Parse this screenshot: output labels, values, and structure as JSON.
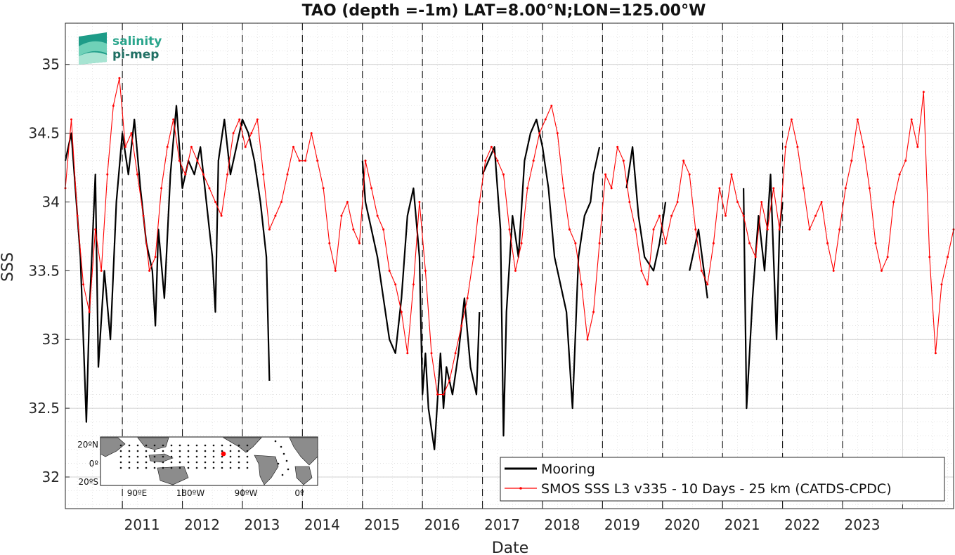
{
  "chart_data": {
    "type": "line",
    "title": "TAO (depth =-1m) LAT=8.00°N;LON=125.00°W",
    "xlabel": "Date",
    "ylabel": "SSS",
    "xlim": [
      2010.05,
      2024.85
    ],
    "ylim": [
      31.77,
      35.3
    ],
    "grid": true,
    "x_ticks": [
      2011,
      2012,
      2013,
      2014,
      2015,
      2016,
      2017,
      2018,
      2019,
      2020,
      2021,
      2022,
      2023,
      2024
    ],
    "x_tick_labels": [
      "2011",
      "2012",
      "2013",
      "2014",
      "2015",
      "2016",
      "2017",
      "2018",
      "2019",
      "2020",
      "2021",
      "2022",
      "2023",
      ""
    ],
    "y_ticks": [
      32,
      32.5,
      33,
      33.5,
      34,
      34.5,
      35
    ],
    "y_tick_labels": [
      "32",
      "32.5",
      "33",
      "33.5",
      "34",
      "34.5",
      "35"
    ],
    "year_dashed_lines": [
      2011,
      2012,
      2013,
      2014,
      2015,
      2016,
      2017,
      2018,
      2019,
      2020,
      2021,
      2022,
      2023
    ],
    "legend_position": "bottom-right",
    "series": [
      {
        "name": "Mooring",
        "color": "#000000",
        "x": [
          2010.05,
          2010.15,
          2010.25,
          2010.3,
          2010.4,
          2010.45,
          2010.55,
          2010.6,
          2010.7,
          2010.8,
          2010.9,
          2011.0,
          2011.1,
          2011.2,
          2011.3,
          2011.4,
          2011.5,
          2011.55,
          2011.6,
          2011.7,
          2011.8,
          2011.9,
          2012.0,
          2012.1,
          2012.2,
          2012.3,
          2012.4,
          2012.5,
          2012.55,
          2012.6,
          2012.7,
          2012.8,
          2012.9,
          2013.0,
          2013.1,
          2013.2,
          2013.3,
          2013.4,
          2013.45,
          null,
          2015.0,
          2015.05,
          2015.15,
          2015.25,
          2015.35,
          2015.45,
          2015.55,
          2015.65,
          2015.75,
          2015.85,
          2015.95,
          2016.0,
          2016.05,
          2016.1,
          2016.2,
          2016.3,
          2016.35,
          2016.4,
          2016.5,
          2016.6,
          2016.7,
          2016.8,
          2016.9,
          2016.95,
          null,
          2017.0,
          2017.1,
          2017.2,
          2017.3,
          2017.35,
          2017.4,
          2017.5,
          2017.6,
          2017.7,
          2017.8,
          2017.9,
          2018.0,
          2018.1,
          2018.2,
          2018.3,
          2018.4,
          2018.5,
          2018.6,
          2018.7,
          2018.8,
          2018.85,
          2018.95,
          null,
          2019.4,
          2019.5,
          2019.6,
          2019.7,
          2019.85,
          2019.95,
          2020.05,
          null,
          2020.45,
          2020.6,
          2020.75,
          null,
          2021.35,
          2021.4,
          2021.5,
          2021.6,
          2021.7,
          2021.8,
          2021.9,
          2021.95,
          2022.0
        ],
        "y": [
          34.3,
          34.5,
          33.9,
          33.6,
          32.4,
          33.2,
          34.2,
          32.8,
          33.5,
          33.0,
          34.0,
          34.5,
          34.2,
          34.6,
          34.1,
          33.7,
          33.5,
          33.1,
          33.8,
          33.3,
          34.2,
          34.7,
          34.1,
          34.3,
          34.2,
          34.4,
          34.0,
          33.6,
          33.2,
          34.3,
          34.6,
          34.2,
          34.4,
          34.6,
          34.5,
          34.3,
          34.0,
          33.6,
          32.7,
          null,
          34.3,
          34.0,
          33.8,
          33.6,
          33.3,
          33.0,
          32.9,
          33.3,
          33.9,
          34.1,
          33.6,
          32.6,
          32.9,
          32.5,
          32.2,
          32.9,
          32.5,
          32.8,
          32.6,
          32.9,
          33.3,
          32.8,
          32.6,
          33.2,
          null,
          34.2,
          34.3,
          34.4,
          33.8,
          32.3,
          33.2,
          33.9,
          33.6,
          34.3,
          34.5,
          34.6,
          34.4,
          34.1,
          33.6,
          33.4,
          33.2,
          32.5,
          33.6,
          33.9,
          34.0,
          34.2,
          34.4,
          null,
          34.1,
          34.4,
          33.9,
          33.6,
          33.5,
          33.7,
          34.0,
          null,
          33.5,
          33.8,
          33.3,
          null,
          34.1,
          32.5,
          33.3,
          33.9,
          33.5,
          34.2,
          33.0,
          33.8,
          34.0
        ]
      },
      {
        "name": "SMOS SSS L3 v335 - 10 Days - 25 km (CATDS-CPDC)",
        "color": "#ff0000",
        "x": [
          2010.05,
          2010.15,
          2010.25,
          2010.35,
          2010.45,
          2010.55,
          2010.65,
          2010.75,
          2010.85,
          2010.95,
          2011.05,
          2011.15,
          2011.25,
          2011.35,
          2011.45,
          2011.55,
          2011.65,
          2011.75,
          2011.85,
          2011.95,
          2012.05,
          2012.15,
          2012.25,
          2012.35,
          2012.45,
          2012.55,
          2012.65,
          2012.75,
          2012.85,
          2012.95,
          2013.05,
          2013.15,
          2013.25,
          2013.35,
          2013.45,
          2013.55,
          2013.65,
          2013.75,
          2013.85,
          2013.95,
          2014.05,
          2014.15,
          2014.25,
          2014.35,
          2014.45,
          2014.55,
          2014.65,
          2014.75,
          2014.85,
          2014.95,
          2015.05,
          2015.15,
          2015.25,
          2015.35,
          2015.45,
          2015.55,
          2015.65,
          2015.75,
          2015.85,
          2015.95,
          2016.05,
          2016.15,
          2016.25,
          2016.35,
          2016.45,
          2016.55,
          2016.65,
          2016.75,
          2016.85,
          2016.95,
          2017.05,
          2017.15,
          2017.25,
          2017.35,
          2017.45,
          2017.55,
          2017.65,
          2017.75,
          2017.85,
          2017.95,
          2018.05,
          2018.15,
          2018.25,
          2018.35,
          2018.45,
          2018.55,
          2018.65,
          2018.75,
          2018.85,
          2018.95,
          2019.05,
          2019.15,
          2019.25,
          2019.35,
          2019.45,
          2019.55,
          2019.65,
          2019.75,
          2019.85,
          2019.95,
          2020.05,
          2020.15,
          2020.25,
          2020.35,
          2020.45,
          2020.55,
          2020.65,
          2020.75,
          2020.85,
          2020.95,
          2021.05,
          2021.15,
          2021.25,
          2021.35,
          2021.45,
          2021.55,
          2021.65,
          2021.75,
          2021.85,
          2021.95,
          2022.05,
          2022.15,
          2022.25,
          2022.35,
          2022.45,
          2022.55,
          2022.65,
          2022.75,
          2022.85,
          2022.95,
          2023.05,
          2023.15,
          2023.25,
          2023.35,
          2023.45,
          2023.55,
          2023.65,
          2023.75,
          2023.85,
          2023.95,
          2024.05,
          2024.15,
          2024.25,
          2024.35,
          2024.45,
          2024.55,
          2024.65,
          2024.75,
          2024.85
        ],
        "y": [
          34.1,
          34.6,
          33.9,
          33.4,
          33.2,
          33.8,
          33.5,
          34.2,
          34.7,
          34.9,
          34.4,
          34.5,
          34.2,
          33.9,
          33.5,
          33.6,
          34.1,
          34.4,
          34.6,
          34.3,
          34.2,
          34.4,
          34.3,
          34.2,
          34.1,
          34.0,
          33.9,
          34.2,
          34.5,
          34.6,
          34.4,
          34.5,
          34.6,
          34.2,
          33.8,
          33.9,
          34.0,
          34.2,
          34.4,
          34.3,
          34.3,
          34.5,
          34.3,
          34.1,
          33.7,
          33.5,
          33.9,
          34.0,
          33.8,
          33.7,
          34.3,
          34.1,
          33.9,
          33.8,
          33.5,
          33.4,
          33.2,
          32.9,
          33.4,
          34.0,
          33.5,
          32.9,
          32.6,
          32.6,
          32.7,
          32.9,
          33.1,
          33.3,
          33.6,
          34.0,
          34.3,
          34.4,
          34.3,
          34.2,
          33.8,
          33.5,
          33.7,
          34.1,
          34.3,
          34.5,
          34.6,
          34.7,
          34.5,
          34.1,
          33.8,
          33.7,
          33.4,
          33.0,
          33.2,
          33.7,
          34.2,
          34.1,
          34.4,
          34.3,
          34.0,
          33.8,
          33.5,
          33.4,
          33.8,
          33.9,
          33.7,
          33.9,
          34.0,
          34.3,
          34.2,
          33.8,
          33.5,
          33.4,
          33.7,
          34.1,
          33.9,
          34.2,
          34.0,
          33.9,
          33.7,
          33.6,
          34.0,
          33.8,
          34.1,
          33.8,
          34.4,
          34.6,
          34.4,
          34.1,
          33.8,
          33.9,
          34.0,
          33.7,
          33.5,
          33.8,
          34.1,
          34.3,
          34.6,
          34.4,
          34.1,
          33.7,
          33.5,
          33.6,
          34.0,
          34.2,
          34.3,
          34.6,
          34.4,
          34.8,
          33.6,
          32.9,
          33.4,
          33.6,
          33.8
        ]
      }
    ]
  },
  "logo": {
    "line1": "salinity",
    "line2": "pi-mep"
  },
  "inset_map": {
    "lat_labels": [
      "20ºN",
      "0º",
      "20ºS"
    ],
    "lon_labels": [
      "90ºE",
      "180ºW",
      "90ºW",
      "0º"
    ],
    "ocean_color": "#ffffff",
    "land_color": "#8c8c8c",
    "highlight_color": "#ff0000"
  }
}
